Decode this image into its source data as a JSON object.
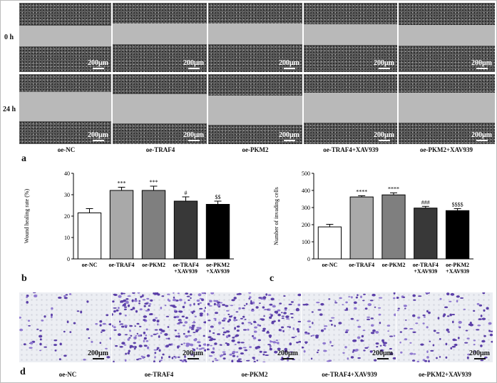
{
  "wound_rows": [
    "0 h",
    "24 h"
  ],
  "scale_label": "200μm",
  "groups": [
    "oe-NC",
    "oe-TRAF4",
    "oe-PKM2",
    "oe-TRAF4+XAV939",
    "oe-PKM2+XAV939"
  ],
  "panel_letters": {
    "a": "a",
    "b": "b",
    "c": "c",
    "d": "d"
  },
  "chart_data": [
    {
      "type": "bar",
      "title": "",
      "xlabel": "",
      "ylabel": "Wound healing rate (%)",
      "categories": [
        "oe-NC",
        "oe-TRAF4",
        "oe-PKM2",
        "oe-TRAF4\n+XAV939",
        "oe-PKM2\n+XAV939"
      ],
      "values": [
        21.5,
        32,
        32,
        27,
        25.5
      ],
      "errors": [
        2,
        1.5,
        2,
        2,
        1.5
      ],
      "annotations": [
        "",
        "***",
        "***",
        "#",
        "$$"
      ],
      "bar_colors": [
        "#ffffff",
        "#a9a9a9",
        "#7f7f7f",
        "#383838",
        "#000000"
      ],
      "ylim": [
        0,
        40
      ],
      "yticks": [
        0,
        10,
        20,
        30,
        40
      ]
    },
    {
      "type": "bar",
      "title": "",
      "xlabel": "",
      "ylabel": "Number of invading cells",
      "categories": [
        "oe-NC",
        "oe-TRAF4",
        "oe-PKM2",
        "oe-TRAF4\n+XAV939",
        "oe-PKM2\n+XAV939"
      ],
      "values": [
        187,
        362,
        374,
        297,
        282
      ],
      "errors": [
        15,
        7,
        12,
        10,
        12
      ],
      "annotations": [
        "",
        "****",
        "****",
        "###",
        "$$$$"
      ],
      "bar_colors": [
        "#ffffff",
        "#a9a9a9",
        "#7f7f7f",
        "#383838",
        "#000000"
      ],
      "ylim": [
        0,
        500
      ],
      "yticks": [
        0,
        100,
        200,
        300,
        400,
        500
      ]
    }
  ]
}
